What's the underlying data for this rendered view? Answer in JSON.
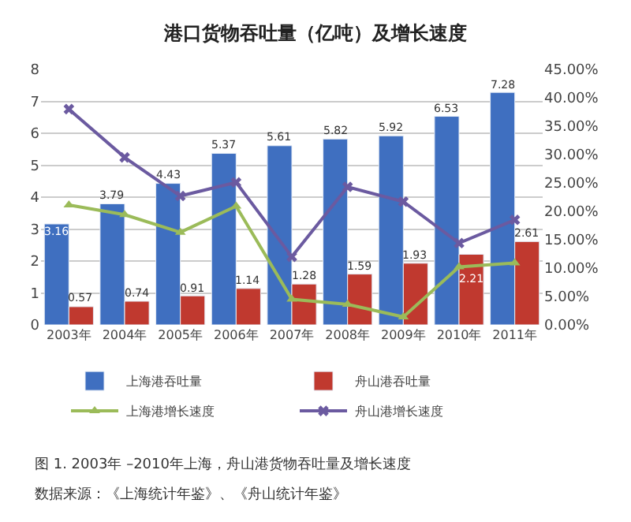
{
  "chart_data": {
    "type": "bar",
    "title": "港口货物吞吐量（亿吨）及增长速度",
    "categories": [
      "2003年",
      "2004年",
      "2005年",
      "2006年",
      "2007年",
      "2008年",
      "2009年",
      "2010年",
      "2011年"
    ],
    "series": [
      {
        "name": "上海港吞吐量",
        "color": "#3f6fc0",
        "values": [
          3.16,
          3.79,
          4.43,
          5.37,
          5.61,
          5.82,
          5.92,
          6.53,
          7.28
        ],
        "value_labels": [
          "3.16",
          "3.79",
          "4.43",
          "5.37",
          "5.61",
          "5.82",
          "5.92",
          "6.53",
          "7.28"
        ]
      },
      {
        "name": "舟山港吞吐量",
        "color": "#c0392f",
        "values": [
          0.57,
          0.74,
          0.91,
          1.14,
          1.28,
          1.59,
          1.93,
          2.21,
          2.61
        ],
        "value_labels": [
          "0.57",
          "0.74",
          "0.91",
          "1.14",
          "1.28",
          "1.59",
          "1.93",
          "2.21",
          "2.61"
        ]
      },
      {
        "name": "上海港增长速度",
        "type": "line",
        "axis": "y2",
        "marker": "triangle",
        "color": "#9bbb59",
        "values": [
          21.1,
          19.4,
          16.3,
          20.9,
          4.5,
          3.6,
          1.4,
          10.2,
          10.9
        ]
      },
      {
        "name": "舟山港增长速度",
        "type": "line",
        "axis": "y2",
        "marker": "cross",
        "color": "#6b5aa0",
        "values": [
          38.0,
          29.5,
          22.7,
          25.1,
          12.0,
          24.3,
          21.7,
          14.4,
          18.5
        ]
      }
    ],
    "ylim": [
      0,
      8
    ],
    "yticks": [
      0,
      1,
      2,
      3,
      4,
      5,
      6,
      7,
      8
    ],
    "y2lim": [
      0,
      45
    ],
    "y2ticks": [
      {
        "value": 0,
        "label": "0.00%"
      },
      {
        "value": 5,
        "label": "5.00%"
      },
      {
        "value": 10,
        "label": "10.00%"
      },
      {
        "value": 15,
        "label": "15.00%"
      },
      {
        "value": 20,
        "label": "20.00%"
      },
      {
        "value": 25,
        "label": "25.00%"
      },
      {
        "value": 30,
        "label": "30.00%"
      },
      {
        "value": 35,
        "label": "35.00%"
      },
      {
        "value": 40,
        "label": "40.00%"
      },
      {
        "value": 45,
        "label": "45.00%"
      }
    ],
    "grid": "y",
    "legend": "bottom",
    "annotations": [
      "图 1. 2003年 –2010年上海，舟山港货物吞吐量及增长速度",
      "数据来源：《上海统计年鉴》、《舟山统计年鉴》"
    ]
  }
}
